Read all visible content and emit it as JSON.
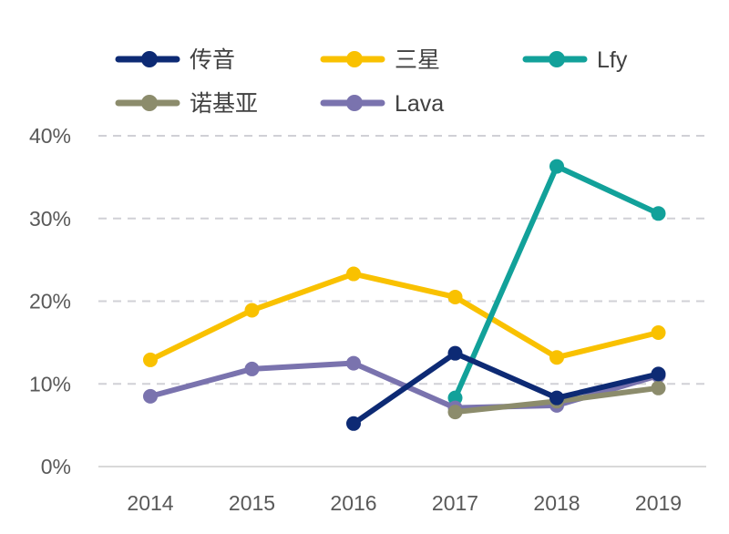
{
  "chart_data": {
    "type": "line",
    "title": "",
    "xlabel": "",
    "ylabel": "",
    "categories": [
      "2014",
      "2015",
      "2016",
      "2017",
      "2018",
      "2019"
    ],
    "ylim": [
      0,
      40
    ],
    "yticks": [
      0,
      10,
      20,
      30,
      40
    ],
    "ytick_labels": [
      "0%",
      "10%",
      "20%",
      "30%",
      "40%"
    ],
    "grid": true,
    "legend_position": "top",
    "series": [
      {
        "name": "传音",
        "color": "#0d2a74",
        "values": [
          null,
          null,
          5.2,
          13.7,
          8.3,
          11.2
        ]
      },
      {
        "name": "三星",
        "color": "#f9c100",
        "values": [
          12.9,
          18.9,
          23.3,
          20.5,
          13.2,
          16.2
        ]
      },
      {
        "name": "Lfy",
        "color": "#12a19a",
        "values": [
          null,
          null,
          null,
          8.3,
          36.3,
          30.6
        ]
      },
      {
        "name": "诺基亚",
        "color": "#8c8c6c",
        "values": [
          null,
          null,
          null,
          6.6,
          7.9,
          9.5
        ]
      },
      {
        "name": "Lava",
        "color": "#7a73ae",
        "values": [
          8.5,
          11.8,
          12.5,
          7.1,
          7.4,
          11.0
        ]
      }
    ]
  }
}
